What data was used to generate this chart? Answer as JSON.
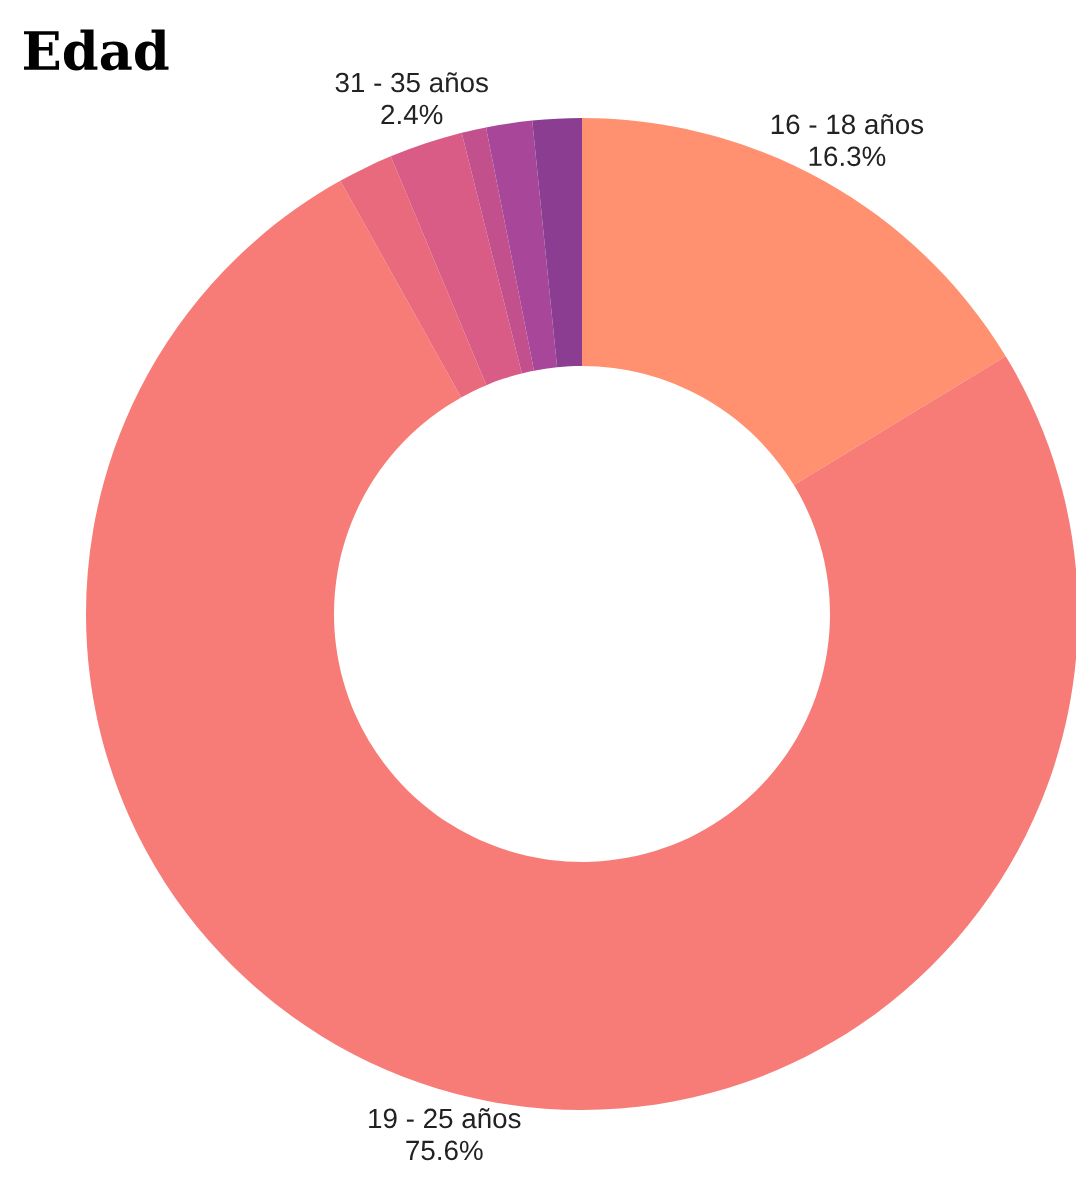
{
  "chart_data": {
    "type": "donut",
    "title": "Edad",
    "categories": [
      "16 - 18 años",
      "19 - 25 años",
      null,
      "31 - 35 años",
      null,
      null,
      null
    ],
    "values": [
      16.3,
      75.6,
      1.8,
      2.4,
      0.8,
      1.5,
      1.6
    ],
    "value_labels": [
      "16.3%",
      "75.6%",
      null,
      "2.4%",
      null,
      null,
      null
    ],
    "colors": [
      "#ff9070",
      "#f77b77",
      "#e96a7c",
      "#d95c86",
      "#c2508d",
      "#a8479a",
      "#8b3d92"
    ],
    "legend": false
  }
}
